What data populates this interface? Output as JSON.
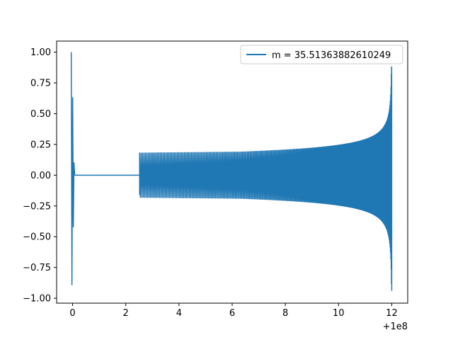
{
  "chart_data": {
    "type": "line",
    "title": "",
    "xlabel": "",
    "ylabel": "",
    "x_offset_label": "+1e8",
    "xlim": [
      -0.6,
      12.6
    ],
    "ylim": [
      -1.04,
      1.09
    ],
    "x_ticks": [
      {
        "value": 0,
        "label": "0"
      },
      {
        "value": 2,
        "label": "2"
      },
      {
        "value": 4,
        "label": "4"
      },
      {
        "value": 6,
        "label": "6"
      },
      {
        "value": 8,
        "label": "8"
      },
      {
        "value": 10,
        "label": "10"
      },
      {
        "value": 12,
        "label": "12"
      }
    ],
    "y_ticks": [
      {
        "value": 1.0,
        "label": "1.00"
      },
      {
        "value": 0.75,
        "label": "0.75"
      },
      {
        "value": 0.5,
        "label": "0.50"
      },
      {
        "value": 0.25,
        "label": "0.25"
      },
      {
        "value": 0.0,
        "label": "0.00"
      },
      {
        "value": -0.25,
        "label": "−0.25"
      },
      {
        "value": -0.5,
        "label": "−0.50"
      },
      {
        "value": -0.75,
        "label": "−0.75"
      },
      {
        "value": -1.0,
        "label": "−1.00"
      }
    ],
    "grid": false,
    "legend_position": "top-right",
    "series": [
      {
        "name": "m = 35.51363882610249",
        "color": "#1f77b4",
        "segments": [
          {
            "kind": "burst",
            "x_start": -0.05,
            "x_end": 0.08,
            "peaks": [
              1.0,
              -0.89,
              0.63,
              -0.42,
              0.1,
              0.0
            ]
          },
          {
            "kind": "flat",
            "x_start": 0.08,
            "x_end": 2.52,
            "y": 0.0
          },
          {
            "kind": "chirp",
            "x_start": 2.52,
            "x_end": 12.0,
            "amp_start": 0.18,
            "amp_mid": 0.2,
            "amp_end": 0.88,
            "amp_end_low": -0.94,
            "cycles": 230
          }
        ]
      }
    ]
  }
}
